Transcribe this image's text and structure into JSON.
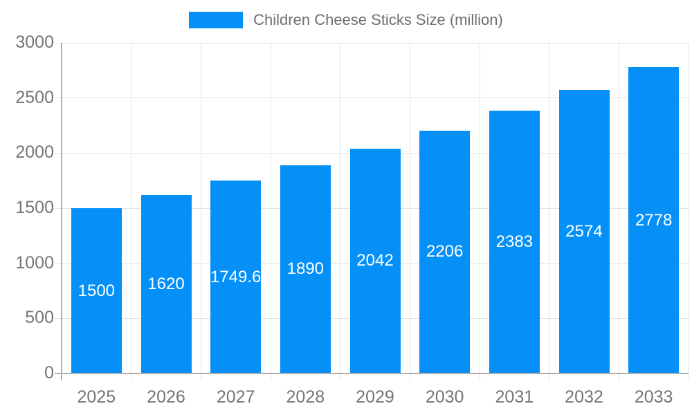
{
  "chart_data": {
    "type": "bar",
    "title": "Children Cheese Sticks Size (million)",
    "legend": [
      "Children Cheese Sticks Size (million)"
    ],
    "legend_position": "top",
    "categories": [
      "2025",
      "2026",
      "2027",
      "2028",
      "2029",
      "2030",
      "2031",
      "2032",
      "2033"
    ],
    "values": [
      1500,
      1620,
      1749.6,
      1890,
      2042,
      2206,
      2383,
      2574,
      2778
    ],
    "value_labels": [
      "1500",
      "1620",
      "1749.6",
      "1890",
      "2042",
      "2206",
      "2383",
      "2574",
      "2778"
    ],
    "xlabel": "",
    "ylabel": "",
    "ylim": [
      0,
      3000
    ],
    "yticks": [
      0,
      500,
      1000,
      1500,
      2000,
      2500,
      3000
    ],
    "grid": true,
    "colors": {
      "bar": "#0590F8",
      "grid": "#e3e3e3",
      "axis": "#b0b0b0",
      "tick_text": "#757575",
      "title_text": "#6e6e6e",
      "bar_label": "#ffffff",
      "background": "#ffffff"
    }
  }
}
